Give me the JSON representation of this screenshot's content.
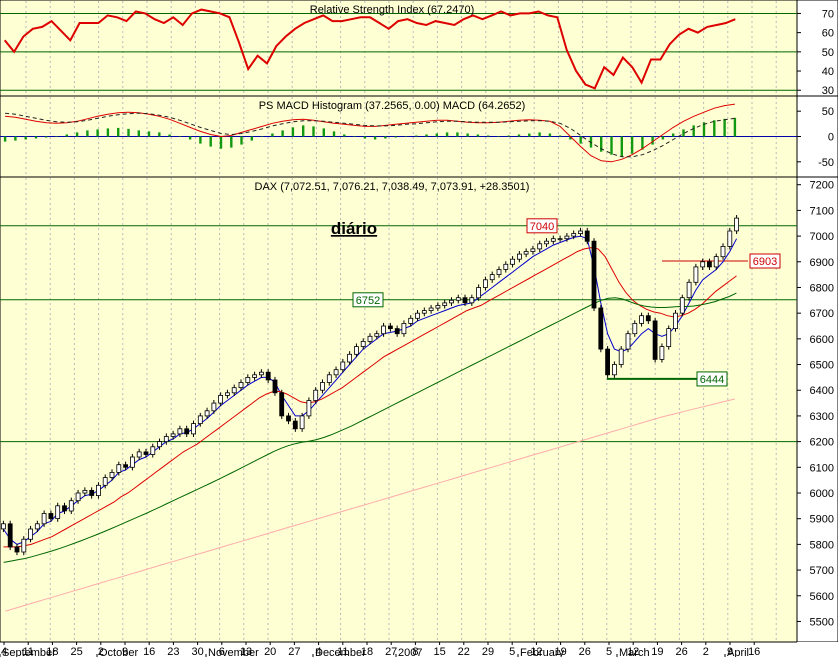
{
  "chart_data": [
    {
      "type": "line",
      "title": "Relative Strength Index (67.2470)",
      "ylim": [
        27,
        77
      ],
      "y_ticks": [
        "70",
        "60",
        "50",
        "40",
        "30"
      ],
      "y_tick_values": [
        70,
        60,
        50,
        40,
        30
      ],
      "reference_lines": [
        70,
        30,
        50
      ],
      "grid": "vertical-dashed",
      "series": [
        {
          "color": "#dd0000",
          "values": [
            56,
            50,
            58,
            62,
            63,
            66,
            61,
            56,
            65,
            65,
            65,
            69,
            68,
            66,
            71,
            70,
            67,
            65,
            68,
            64,
            70,
            72,
            71,
            70,
            68,
            55,
            41,
            48,
            44,
            53,
            58,
            62,
            65,
            67,
            69,
            66,
            66,
            67,
            68,
            68,
            65,
            62,
            66,
            67,
            65,
            64,
            66,
            65,
            64,
            67,
            69,
            67,
            69,
            71,
            69,
            70,
            70,
            71,
            69,
            68,
            51,
            40,
            33,
            31,
            42,
            38,
            47,
            42,
            34,
            46,
            46,
            54,
            59,
            62,
            60,
            63,
            64,
            65,
            67
          ]
        }
      ]
    },
    {
      "type": "bar",
      "title": "PS MACD Histogram (37.2565, 0.00) MACD (64.2652)",
      "ylim": [
        -80,
        80
      ],
      "y_ticks": [
        "50",
        "0",
        "-50"
      ],
      "y_tick_values": [
        50,
        0,
        -50
      ],
      "grid": "vertical-dashed",
      "histogram": {
        "color": "#119911",
        "values": [
          -10,
          -8,
          -6,
          -4,
          -2,
          0,
          4,
          8,
          12,
          14,
          16,
          17,
          15,
          12,
          10,
          8,
          4,
          0,
          -6,
          -14,
          -20,
          -24,
          -22,
          -16,
          -8,
          0,
          6,
          12,
          18,
          22,
          20,
          16,
          10,
          4,
          0,
          -4,
          -6,
          -4,
          -2,
          0,
          2,
          4,
          6,
          8,
          8,
          6,
          4,
          2,
          0,
          2,
          4,
          6,
          8,
          6,
          2,
          -6,
          -14,
          -22,
          -30,
          -36,
          -40,
          -34,
          -26,
          -16,
          -6,
          6,
          14,
          22,
          28,
          32,
          35,
          37
        ]
      },
      "series": [
        {
          "name": "MACD",
          "color": "#dd0000",
          "values": [
            40,
            38,
            34,
            30,
            27,
            26,
            27,
            30,
            35,
            40,
            44,
            47,
            48,
            47,
            44,
            40,
            34,
            26,
            18,
            10,
            4,
            0,
            2,
            8,
            14,
            20,
            26,
            30,
            33,
            34,
            32,
            29,
            26,
            24,
            22,
            20,
            20,
            22,
            24,
            26,
            28,
            30,
            32,
            32,
            30,
            28,
            27,
            27,
            28,
            30,
            32,
            33,
            32,
            30,
            20,
            0,
            -20,
            -38,
            -48,
            -50,
            -45,
            -36,
            -24,
            -10,
            4,
            18,
            30,
            40,
            48,
            56,
            61,
            64
          ]
        },
        {
          "name": "Signal",
          "color": "#222222",
          "style": "dashed",
          "values": [
            46,
            44,
            40,
            36,
            32,
            29,
            28,
            29,
            32,
            36,
            40,
            43,
            45,
            46,
            45,
            42,
            38,
            32,
            25,
            18,
            12,
            6,
            4,
            6,
            10,
            15,
            21,
            25,
            29,
            31,
            31,
            30,
            28,
            26,
            24,
            22,
            21,
            21,
            22,
            24,
            25,
            27,
            29,
            30,
            30,
            29,
            28,
            28,
            28,
            29,
            30,
            31,
            31,
            30,
            26,
            16,
            2,
            -12,
            -24,
            -34,
            -40,
            -40,
            -36,
            -28,
            -18,
            -6,
            6,
            16,
            24,
            30,
            33,
            36
          ]
        }
      ]
    },
    {
      "type": "candlestick",
      "title": "DAX (7,072.51, 7,076.21, 7,038.49, 7,073.91, +28.3501)",
      "annotation": "diário",
      "ylim": [
        5420,
        7230
      ],
      "y_ticks": [
        "7200",
        "7100",
        "7000",
        "6900",
        "6800",
        "6700",
        "6600",
        "6500",
        "6400",
        "6300",
        "6200",
        "6100",
        "6000",
        "5900",
        "5800",
        "5700",
        "5600",
        "5500"
      ],
      "y_tick_values": [
        7200,
        7100,
        7000,
        6900,
        6800,
        6700,
        6600,
        6500,
        6400,
        6300,
        6200,
        6100,
        6000,
        5900,
        5800,
        5700,
        5600,
        5500
      ],
      "x_day_labels": [
        "4",
        "11",
        "18",
        "25",
        "2",
        "9",
        "16",
        "23",
        "30",
        "6",
        "13",
        "20",
        "27",
        "4",
        "11",
        "18",
        "27",
        "8",
        "15",
        "22",
        "29",
        "5",
        "12",
        "19",
        "26",
        "5",
        "12",
        "19",
        "26",
        "2",
        "9",
        "16"
      ],
      "x_month_labels": [
        "September",
        "October",
        "November",
        "December",
        "2007",
        "February",
        "March",
        "April"
      ],
      "levels": [
        {
          "label": "7040",
          "value": 7040,
          "color": "#006600",
          "label_color": "#cc0000"
        },
        {
          "label": "6752",
          "value": 6752,
          "color": "#006600",
          "label_color": "#006600"
        },
        {
          "value": 6200,
          "color": "#006600"
        },
        {
          "label": "6903",
          "value": 6903,
          "color": "#cc0000",
          "label_color": "#cc0000"
        },
        {
          "label": "6444",
          "value": 6444,
          "color": "#006600",
          "label_color": "#006600"
        }
      ],
      "closes": [
        5880,
        5790,
        5770,
        5820,
        5860,
        5880,
        5920,
        5900,
        5950,
        5930,
        5970,
        6000,
        6010,
        5990,
        6030,
        6060,
        6080,
        6110,
        6100,
        6140,
        6160,
        6150,
        6180,
        6200,
        6220,
        6230,
        6250,
        6230,
        6270,
        6300,
        6320,
        6350,
        6380,
        6390,
        6410,
        6430,
        6450,
        6460,
        6470,
        6440,
        6390,
        6300,
        6280,
        6250,
        6300,
        6360,
        6400,
        6430,
        6460,
        6480,
        6510,
        6540,
        6570,
        6590,
        6610,
        6620,
        6650,
        6640,
        6620,
        6660,
        6680,
        6700,
        6710,
        6720,
        6730,
        6740,
        6750,
        6760,
        6740,
        6760,
        6800,
        6830,
        6850,
        6870,
        6890,
        6910,
        6930,
        6940,
        6950,
        6970,
        6980,
        6990,
        6990,
        7000,
        7010,
        7020,
        6980,
        6720,
        6560,
        6460,
        6500,
        6560,
        6620,
        6660,
        6690,
        6670,
        6520,
        6570,
        6640,
        6700,
        6760,
        6820,
        6880,
        6900,
        6880,
        6920,
        6960,
        7020,
        7070
      ],
      "moving_averages": [
        {
          "name": "MA short",
          "color": "#0000cc",
          "values": [
            5860,
            5820,
            5800,
            5810,
            5830,
            5850,
            5880,
            5890,
            5920,
            5930,
            5950,
            5970,
            5990,
            5995,
            6010,
            6030,
            6050,
            6080,
            6090,
            6110,
            6130,
            6140,
            6160,
            6180,
            6200,
            6210,
            6230,
            6235,
            6250,
            6270,
            6290,
            6315,
            6340,
            6360,
            6380,
            6400,
            6420,
            6435,
            6450,
            6450,
            6430,
            6380,
            6340,
            6300,
            6300,
            6320,
            6350,
            6380,
            6410,
            6440,
            6470,
            6500,
            6530,
            6560,
            6580,
            6600,
            6620,
            6625,
            6630,
            6640,
            6650,
            6670,
            6680,
            6690,
            6700,
            6710,
            6720,
            6730,
            6735,
            6740,
            6760,
            6780,
            6800,
            6820,
            6840,
            6860,
            6880,
            6900,
            6920,
            6935,
            6950,
            6965,
            6975,
            6985,
            6995,
            7000,
            6990,
            6880,
            6740,
            6620,
            6560,
            6550,
            6560,
            6590,
            6620,
            6640,
            6620,
            6610,
            6620,
            6650,
            6690,
            6740,
            6790,
            6830,
            6850,
            6870,
            6900,
            6940,
            6990
          ]
        },
        {
          "name": "MA medium",
          "color": "#dd0000",
          "values": [
            5790,
            5790,
            5790,
            5795,
            5800,
            5810,
            5820,
            5830,
            5845,
            5860,
            5875,
            5890,
            5905,
            5920,
            5935,
            5950,
            5965,
            5985,
            6000,
            6020,
            6040,
            6060,
            6080,
            6100,
            6120,
            6140,
            6160,
            6175,
            6190,
            6210,
            6230,
            6250,
            6270,
            6290,
            6310,
            6330,
            6350,
            6370,
            6385,
            6395,
            6395,
            6385,
            6370,
            6355,
            6350,
            6355,
            6365,
            6380,
            6395,
            6410,
            6430,
            6450,
            6470,
            6490,
            6510,
            6530,
            6545,
            6560,
            6575,
            6590,
            6605,
            6620,
            6635,
            6650,
            6665,
            6680,
            6695,
            6710,
            6720,
            6730,
            6745,
            6760,
            6775,
            6790,
            6805,
            6820,
            6835,
            6850,
            6865,
            6880,
            6895,
            6910,
            6925,
            6940,
            6950,
            6955,
            6950,
            6920,
            6870,
            6820,
            6780,
            6750,
            6730,
            6715,
            6705,
            6700,
            6690,
            6685,
            6690,
            6700,
            6715,
            6735,
            6760,
            6785,
            6805,
            6825,
            6845
          ]
        },
        {
          "name": "MA long",
          "color": "#006600",
          "values": [
            5730,
            5735,
            5740,
            5745,
            5752,
            5760,
            5768,
            5776,
            5785,
            5795,
            5805,
            5815,
            5826,
            5837,
            5848,
            5860,
            5872,
            5884,
            5896,
            5908,
            5920,
            5933,
            5946,
            5959,
            5972,
            5985,
            5998,
            6011,
            6024,
            6037,
            6050,
            6064,
            6078,
            6092,
            6106,
            6120,
            6134,
            6148,
            6162,
            6174,
            6184,
            6192,
            6198,
            6202,
            6208,
            6216,
            6226,
            6238,
            6250,
            6262,
            6276,
            6290,
            6304,
            6318,
            6332,
            6346,
            6360,
            6374,
            6388,
            6402,
            6416,
            6430,
            6444,
            6458,
            6472,
            6486,
            6500,
            6514,
            6528,
            6542,
            6556,
            6570,
            6584,
            6598,
            6612,
            6626,
            6640,
            6654,
            6668,
            6682,
            6696,
            6710,
            6724,
            6738,
            6750,
            6758,
            6760,
            6755,
            6745,
            6735,
            6728,
            6724,
            6722,
            6722,
            6724,
            6726,
            6726,
            6728,
            6732,
            6738,
            6745,
            6755,
            6765,
            6778
          ]
        },
        {
          "name": "MA 200",
          "color": "#ffaaaa",
          "values": [
            5540,
            5552,
            5564,
            5576,
            5588,
            5600,
            5612,
            5624,
            5636,
            5648,
            5660,
            5672,
            5684,
            5696,
            5708,
            5720,
            5732,
            5744,
            5756,
            5768,
            5780,
            5792,
            5804,
            5816,
            5828,
            5840,
            5852,
            5864,
            5876,
            5888,
            5900,
            5912,
            5924,
            5936,
            5948,
            5960,
            5972,
            5984,
            5996,
            6008,
            6020,
            6032,
            6044,
            6056,
            6068,
            6080,
            6092,
            6104,
            6116,
            6128,
            6140,
            6152,
            6164,
            6176,
            6188,
            6200,
            6212,
            6224,
            6236,
            6248,
            6260,
            6272,
            6284,
            6296,
            6306,
            6316,
            6326,
            6336,
            6346,
            6356,
            6366
          ]
        }
      ]
    }
  ]
}
